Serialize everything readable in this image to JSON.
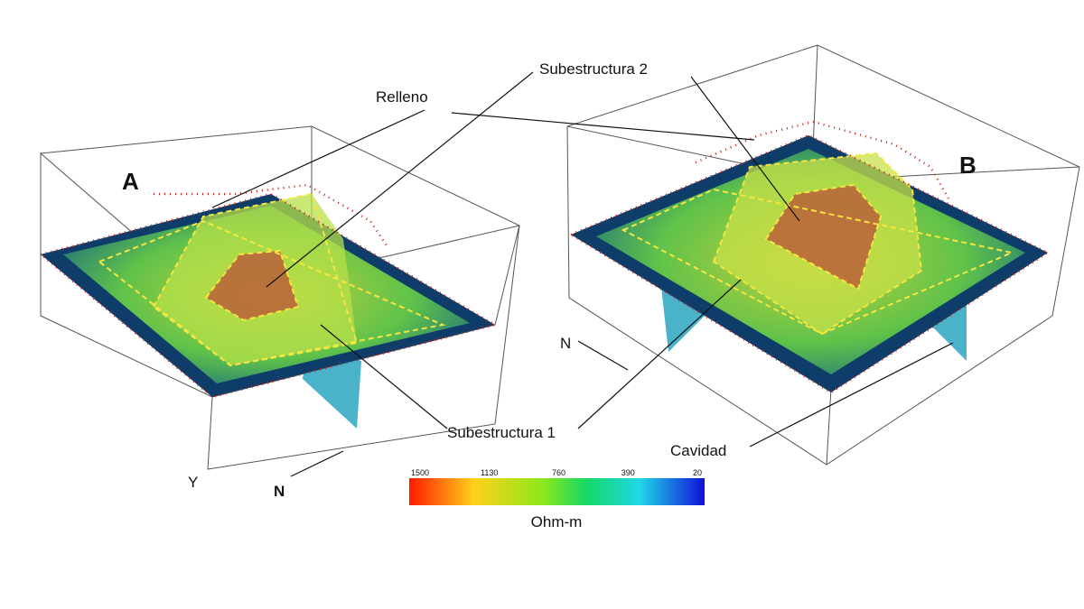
{
  "labels": {
    "panel_a": "A",
    "panel_b": "B",
    "relleno": "Relleno",
    "subestructura_2": "Subestructura 2",
    "subestructura_1": "Subestructura 1",
    "cavidad": "Cavidad",
    "north_a": "N",
    "north_b": "N",
    "axis_y": "Y"
  },
  "colorbar": {
    "ticks": [
      1500,
      1130,
      760,
      390,
      20
    ],
    "unit": "Ohm-m"
  }
}
